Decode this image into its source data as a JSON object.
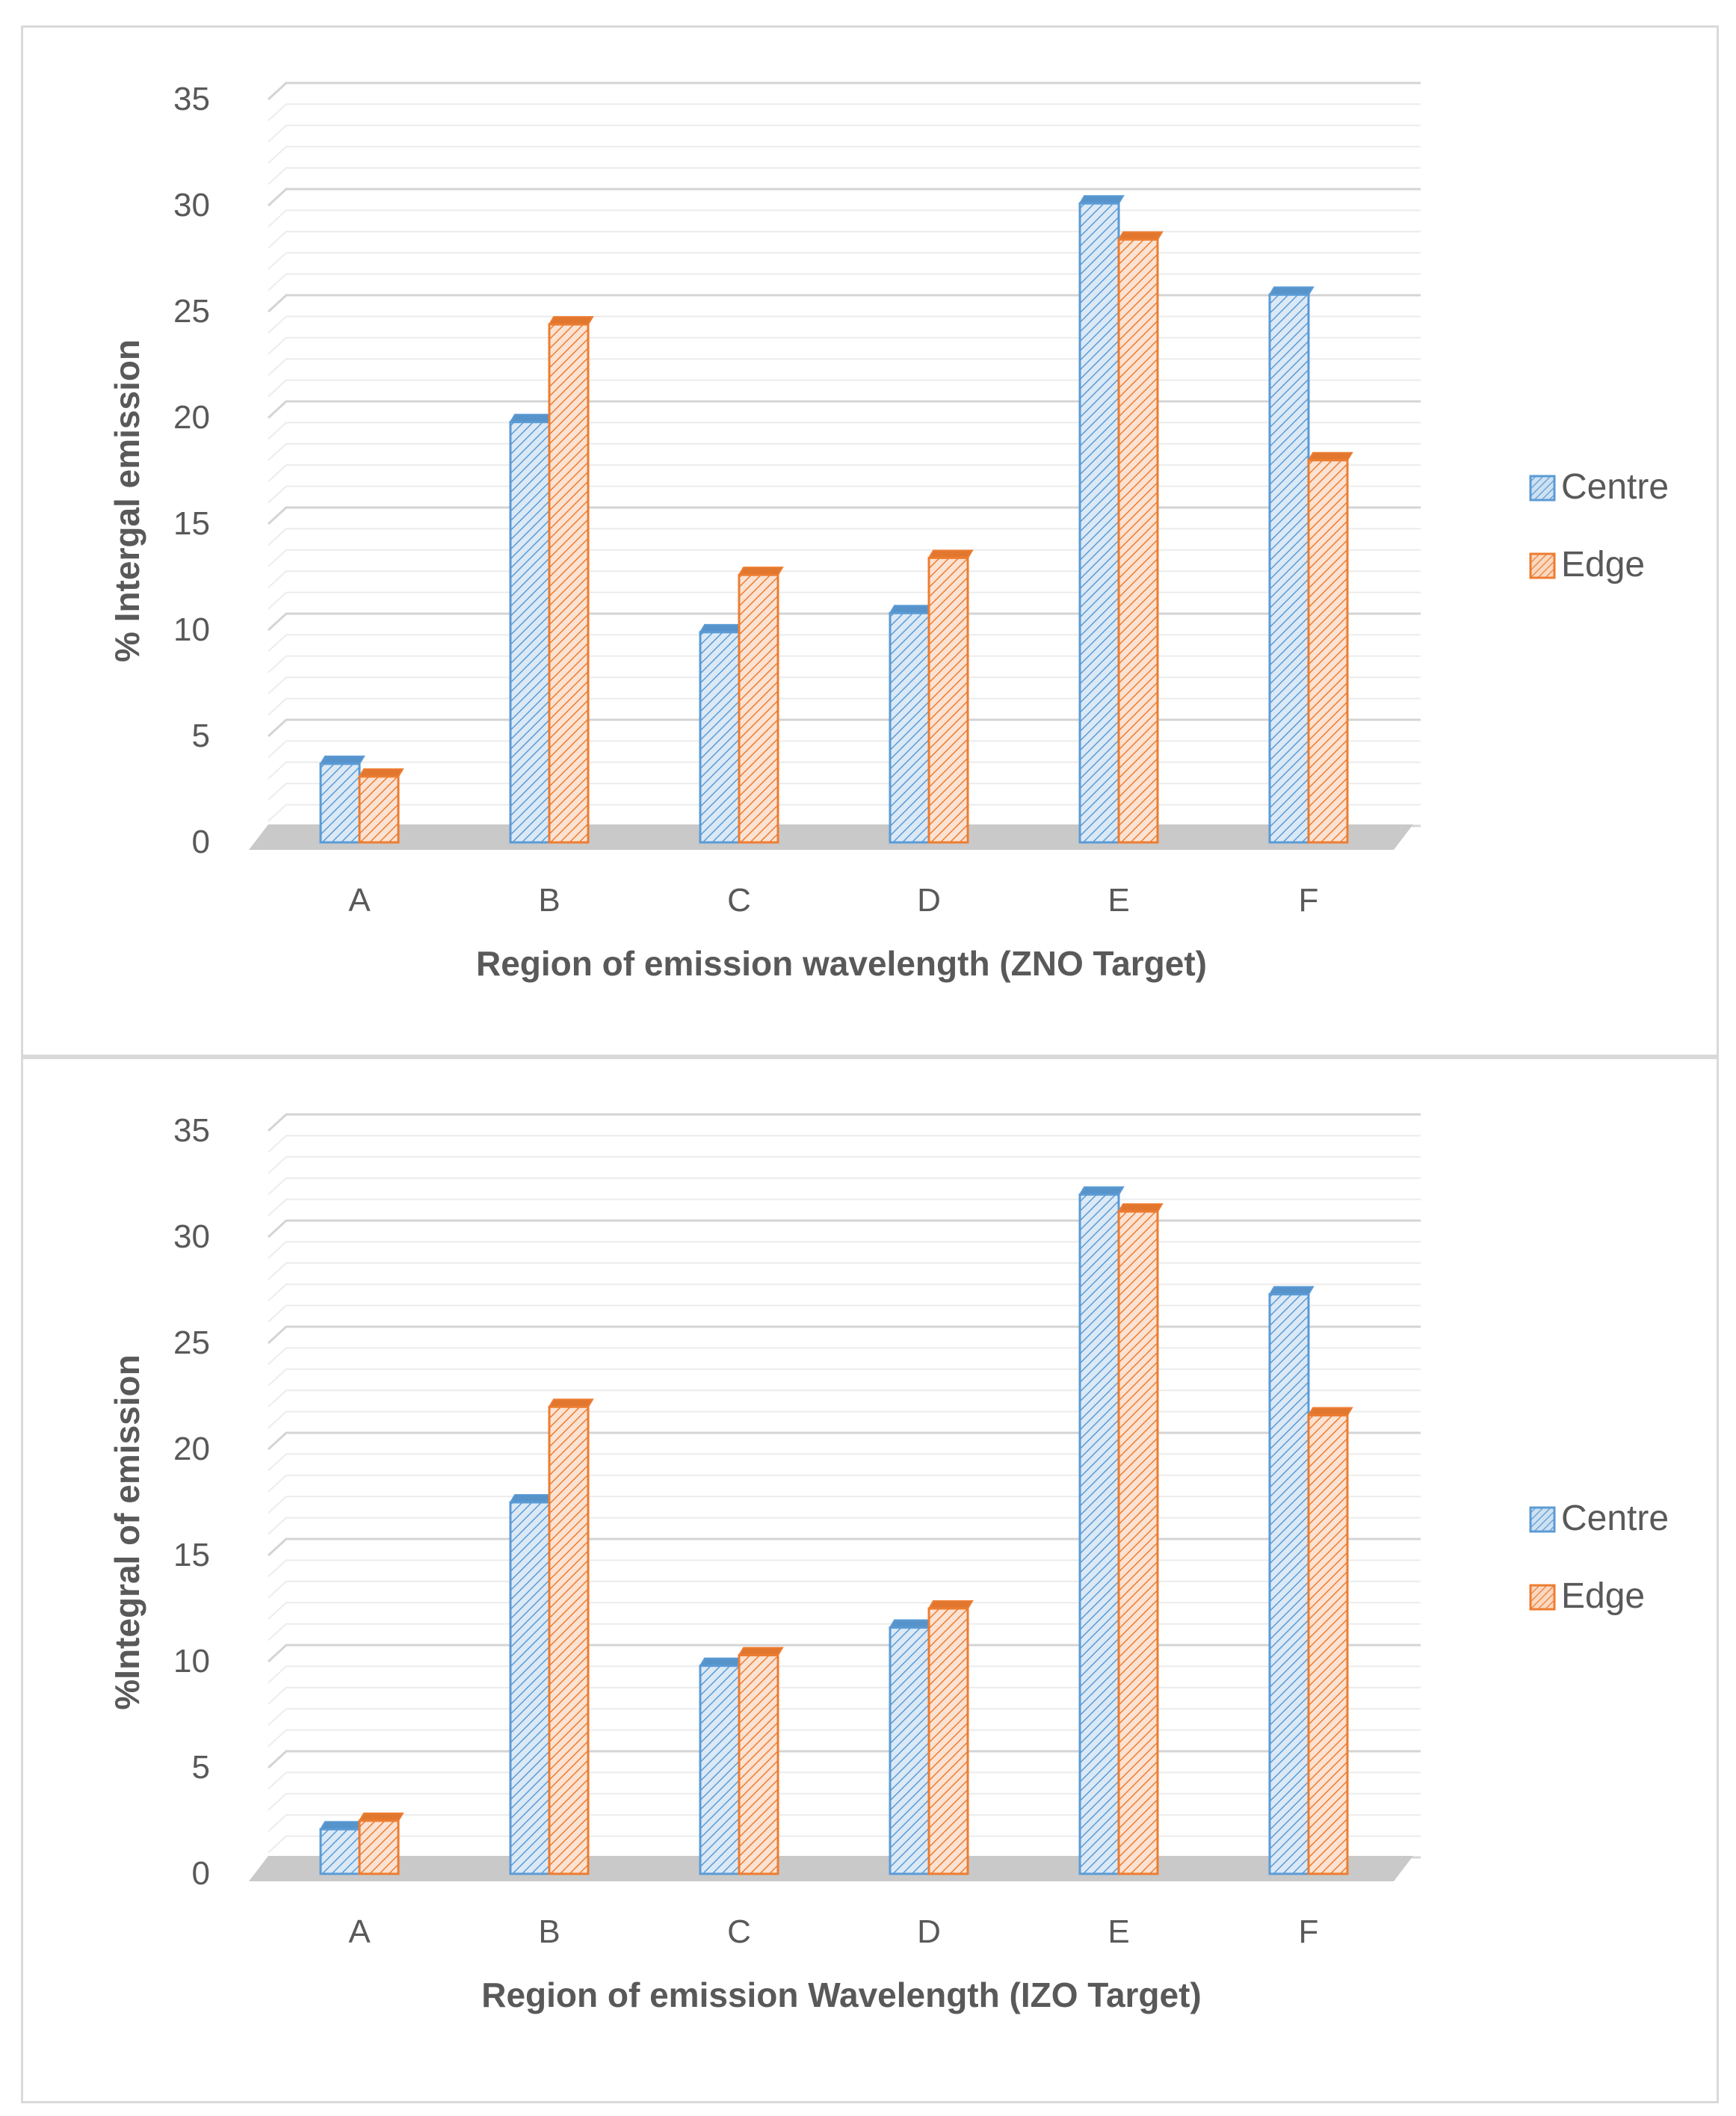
{
  "chart_data": [
    {
      "type": "bar",
      "categories": [
        "A",
        "B",
        "C",
        "D",
        "E",
        "F"
      ],
      "series": [
        {
          "name": "Centre",
          "values": [
            3.7,
            19.8,
            9.9,
            10.8,
            30.1,
            25.8
          ]
        },
        {
          "name": "Edge",
          "values": [
            3.1,
            24.4,
            12.6,
            13.4,
            28.4,
            18.0
          ]
        }
      ],
      "xlabel": "Region of emission wavelength (ZNO Target)",
      "ylabel": "% Intergal emission",
      "ylim": [
        0,
        35
      ],
      "yticks": [
        0,
        5,
        10,
        15,
        20,
        25,
        30,
        35
      ],
      "grid": true,
      "legend": "right",
      "colors": {
        "Centre": "#5b9bd5",
        "Edge": "#ed7d31"
      }
    },
    {
      "type": "bar",
      "categories": [
        "A",
        "B",
        "C",
        "D",
        "E",
        "F"
      ],
      "series": [
        {
          "name": "Centre",
          "values": [
            2.1,
            17.5,
            9.8,
            11.6,
            32.0,
            27.3
          ]
        },
        {
          "name": "Edge",
          "values": [
            2.5,
            22.0,
            10.3,
            12.5,
            31.2,
            21.6
          ]
        }
      ],
      "xlabel": "Region of emission Wavelength (IZO Target)",
      "ylabel": "%Integral of emission",
      "ylim": [
        0,
        35
      ],
      "yticks": [
        0,
        5,
        10,
        15,
        20,
        25,
        30,
        35
      ],
      "grid": true,
      "legend": "right",
      "colors": {
        "Centre": "#5b9bd5",
        "Edge": "#ed7d31"
      }
    }
  ]
}
